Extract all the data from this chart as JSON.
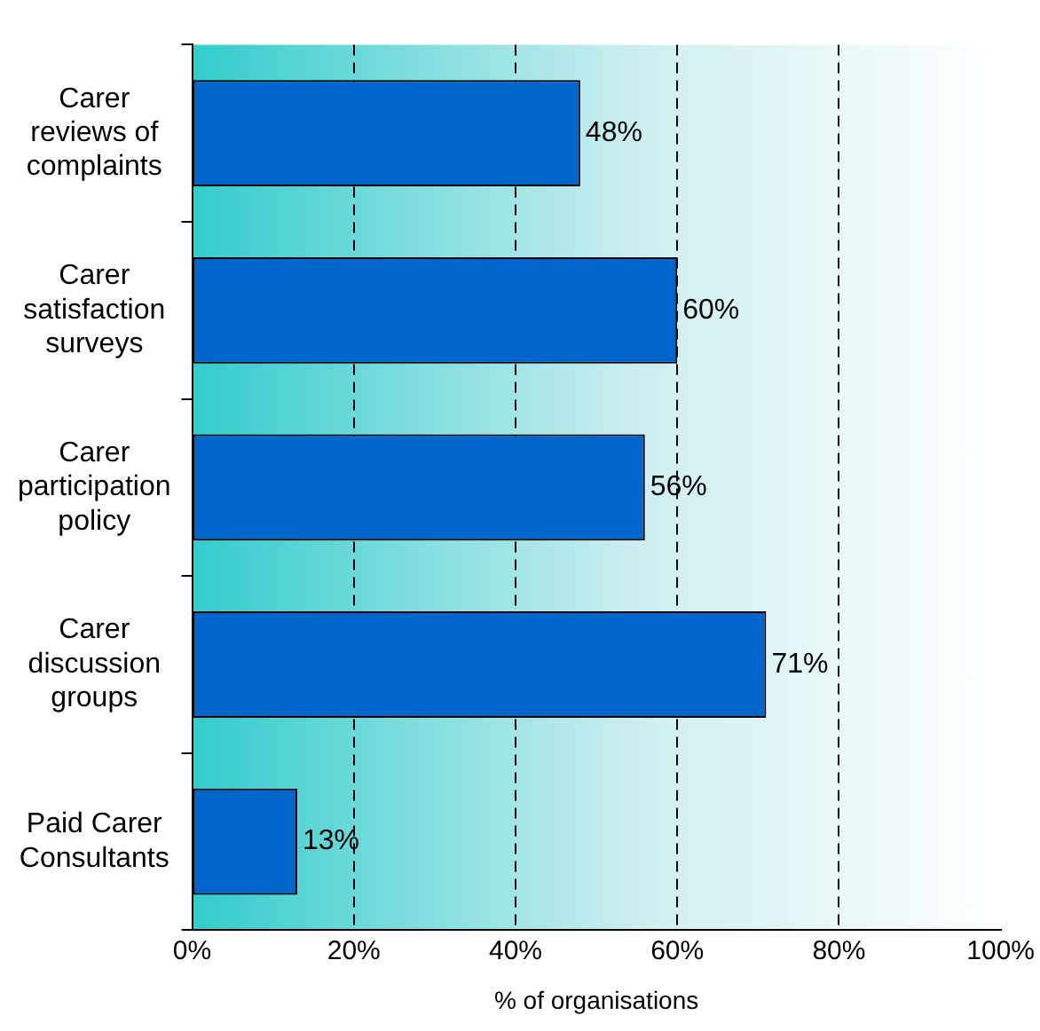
{
  "chart_data": {
    "type": "bar",
    "orientation": "horizontal",
    "xlabel": "% of organisations",
    "categories": [
      "Carer reviews of complaints",
      "Carer satisfaction surveys",
      "Carer participation policy",
      "Carer discussion groups",
      "Paid Carer Consultants"
    ],
    "values": [
      48,
      60,
      56,
      71,
      13
    ],
    "value_labels": [
      "48%",
      "60%",
      "56%",
      "71%",
      "13%"
    ],
    "color": "#0066cc",
    "xlim": [
      0,
      100
    ],
    "xticks": [
      {
        "value": 0,
        "label": "0%"
      },
      {
        "value": 20,
        "label": "20%"
      },
      {
        "value": 40,
        "label": "40%"
      },
      {
        "value": 60,
        "label": "60%"
      },
      {
        "value": 80,
        "label": "80%"
      },
      {
        "value": 100,
        "label": "100%"
      }
    ],
    "grid": "x",
    "line_style": "dashed",
    "legend": false
  }
}
